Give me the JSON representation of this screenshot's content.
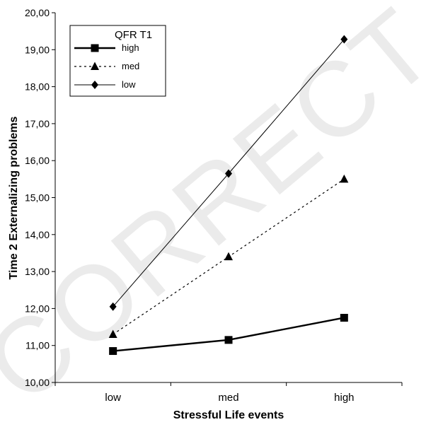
{
  "chart_data": {
    "type": "line",
    "title": "",
    "xlabel": "Stressful Life events",
    "ylabel": "Time 2 Externalizing problems",
    "categories": [
      "low",
      "med",
      "high"
    ],
    "ylim": [
      10,
      20
    ],
    "y_ticks": [
      "10,00",
      "11,00",
      "12,00",
      "13,00",
      "14,00",
      "15,00",
      "16,00",
      "17,00",
      "18,00",
      "19,00",
      "20,00"
    ],
    "grid": false,
    "legend_title": "QFR T1",
    "legend_position": "top-left",
    "series": [
      {
        "name": "high",
        "values": [
          10.85,
          11.15,
          11.75
        ],
        "marker": "square",
        "line_style": "solid-thick",
        "color": "#000000"
      },
      {
        "name": "med",
        "values": [
          11.3,
          13.4,
          15.5
        ],
        "marker": "triangle",
        "line_style": "dotted",
        "color": "#000000"
      },
      {
        "name": "low",
        "values": [
          12.05,
          15.65,
          19.28
        ],
        "marker": "diamond",
        "line_style": "solid-thin",
        "color": "#000000"
      }
    ]
  },
  "watermark": "CORRECT"
}
